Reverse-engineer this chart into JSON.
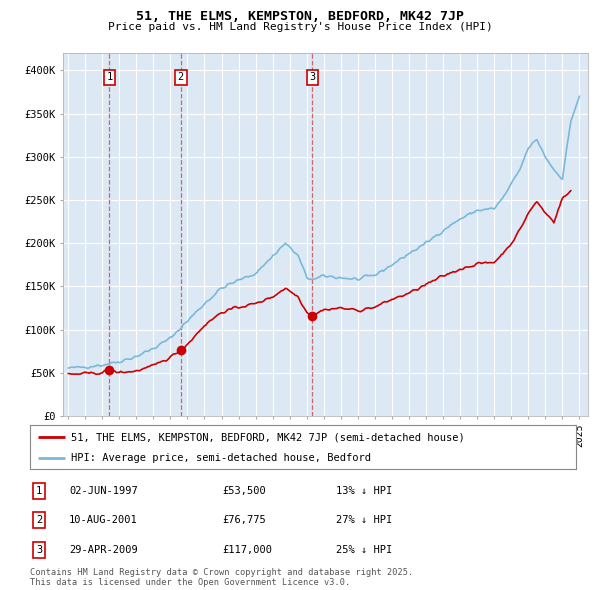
{
  "title": "51, THE ELMS, KEMPSTON, BEDFORD, MK42 7JP",
  "subtitle": "Price paid vs. HM Land Registry's House Price Index (HPI)",
  "bg_color": "#dce9f5",
  "legend_label_red": "51, THE ELMS, KEMPSTON, BEDFORD, MK42 7JP (semi-detached house)",
  "legend_label_blue": "HPI: Average price, semi-detached house, Bedford",
  "footer": "Contains HM Land Registry data © Crown copyright and database right 2025.\nThis data is licensed under the Open Government Licence v3.0.",
  "purchases": [
    {
      "num": 1,
      "date": "02-JUN-1997",
      "price": 53500,
      "pct": "13%",
      "x_year": 1997.42
    },
    {
      "num": 2,
      "date": "10-AUG-2001",
      "price": 76775,
      "pct": "27%",
      "x_year": 2001.61
    },
    {
      "num": 3,
      "date": "29-APR-2009",
      "price": 117000,
      "pct": "25%",
      "x_year": 2009.33
    }
  ],
  "ylim": [
    0,
    420000
  ],
  "yticks": [
    0,
    50000,
    100000,
    150000,
    200000,
    250000,
    300000,
    350000,
    400000
  ],
  "ytick_labels": [
    "£0",
    "£50K",
    "£100K",
    "£150K",
    "£200K",
    "£250K",
    "£300K",
    "£350K",
    "£400K"
  ],
  "xlim": [
    1994.7,
    2025.5
  ],
  "xticks": [
    1995,
    1996,
    1997,
    1998,
    1999,
    2000,
    2001,
    2002,
    2003,
    2004,
    2005,
    2006,
    2007,
    2008,
    2009,
    2010,
    2011,
    2012,
    2013,
    2014,
    2015,
    2016,
    2017,
    2018,
    2019,
    2020,
    2021,
    2022,
    2023,
    2024,
    2025
  ]
}
